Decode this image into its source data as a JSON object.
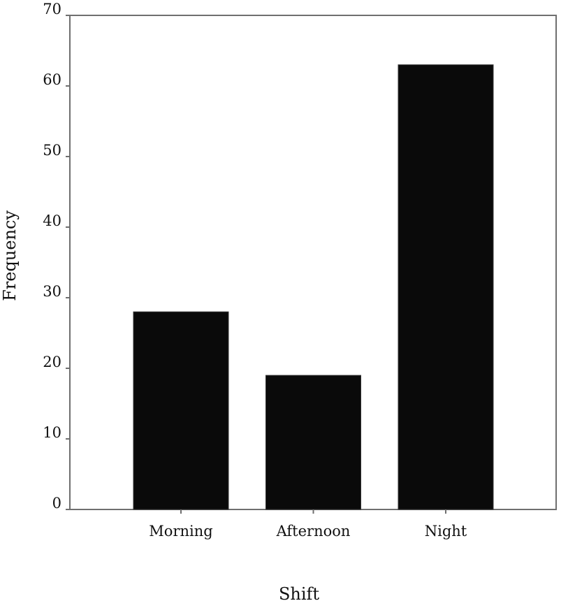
{
  "chart_data": {
    "type": "bar",
    "title": "",
    "xlabel": "Shift",
    "ylabel": "Frequency",
    "categories": [
      "Morning",
      "Afternoon",
      "Night"
    ],
    "values": [
      28,
      19,
      63
    ],
    "ylim": [
      0,
      70
    ],
    "yticks": [
      0,
      10,
      20,
      30,
      40,
      50,
      60,
      70
    ],
    "grid": false,
    "legend": "none",
    "bar_color": "#0a0a0a",
    "axis_color": "#6f6f6f"
  }
}
